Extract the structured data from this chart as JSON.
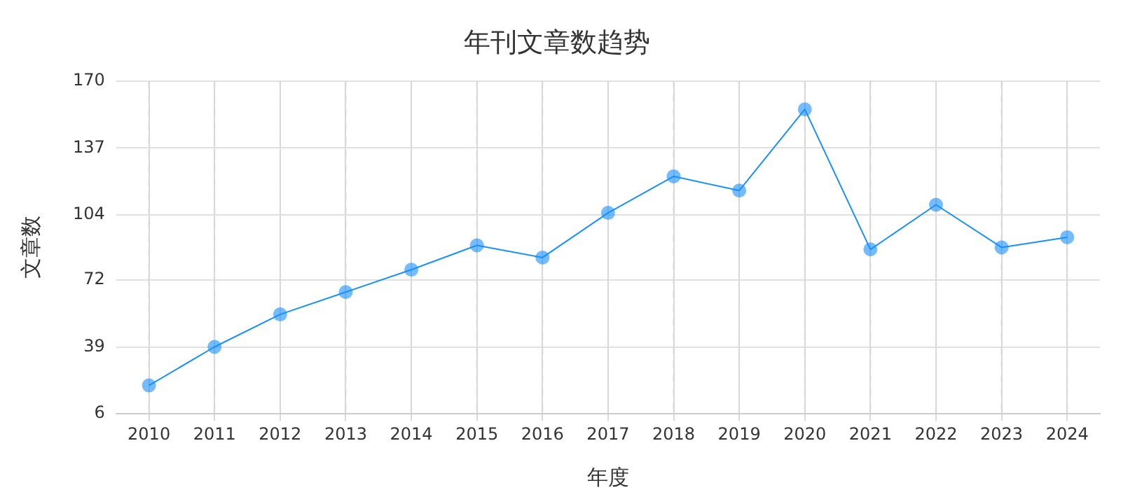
{
  "chart_data": {
    "type": "line",
    "title": "年刊文章数趋势",
    "xlabel": "年度",
    "ylabel": "文章数",
    "categories": [
      "2010",
      "2011",
      "2012",
      "2013",
      "2014",
      "2015",
      "2016",
      "2017",
      "2018",
      "2019",
      "2020",
      "2021",
      "2022",
      "2023",
      "2024"
    ],
    "series": [
      {
        "color": "#1890ff",
        "values": [
          20,
          39,
          55,
          66,
          77,
          89,
          83,
          105,
          123,
          116,
          156,
          87,
          109,
          88,
          93
        ]
      }
    ],
    "ylim": [
      6,
      170
    ],
    "yticks": [
      6,
      39,
      72,
      104,
      137,
      170
    ],
    "grid": true,
    "legend": false,
    "marker": "circle",
    "line_style": "solid"
  }
}
